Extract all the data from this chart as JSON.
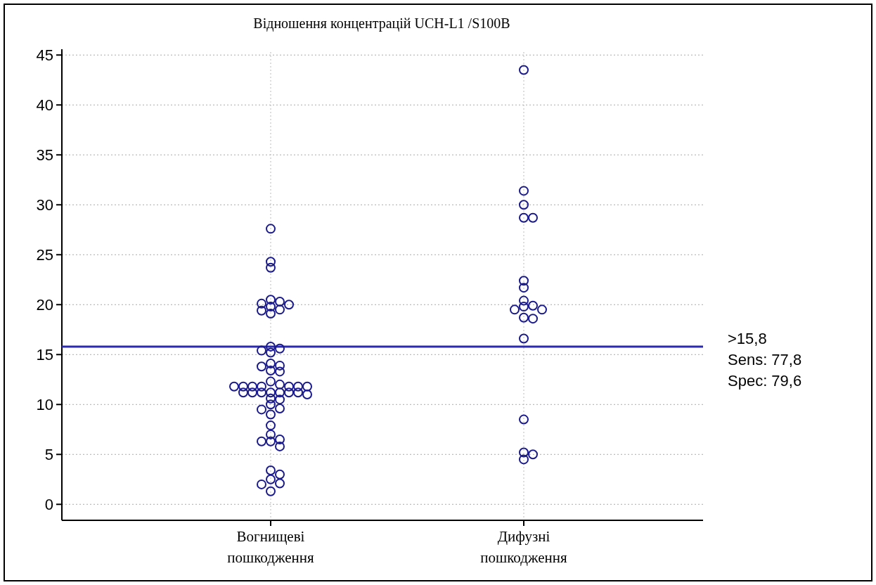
{
  "chart_data": {
    "type": "scatter",
    "title": "Відношення концентрацій UCH-L1 /S100B",
    "categories": [
      "Вогнищеві\nпошкодження",
      "Дифузні\nпошкодження"
    ],
    "series": [
      {
        "color": "#1a1a8c",
        "x": [
          "Вогнищеві\nпошкодження",
          "Вогнищеві\nпошкодження",
          "Вогнищеві\nпошкодження",
          "Вогнищеві\nпошкодження",
          "Вогнищеві\nпошкодження",
          "Вогнищеві\nпошкодження",
          "Вогнищеві\nпошкодження",
          "Вогнищеві\nпошкодження",
          "Вогнищеві\nпошкодження",
          "Вогнищеві\nпошкодження",
          "Вогнищеві\nпошкодження",
          "Вогнищеві\nпошкодження",
          "Вогнищеві\nпошкодження",
          "Вогнищеві\nпошкодження",
          "Вогнищеві\nпошкодження",
          "Вогнищеві\nпошкодження",
          "Вогнищеві\nпошкодження",
          "Вогнищеві\nпошкодження",
          "Вогнищеві\nпошкодження",
          "Вогнищеві\nпошкодження",
          "Вогнищеві\nпошкодження",
          "Вогнищеві\nпошкодження",
          "Вогнищеві\nпошкодження",
          "Вогнищеві\nпошкодження",
          "Вогнищеві\nпошкодження",
          "Вогнищеві\nпошкодження",
          "Вогнищеві\nпошкодження",
          "Вогнищеві\nпошкодження",
          "Вогнищеві\nпошкодження",
          "Вогнищеві\nпошкодження",
          "Вогнищеві\nпошкодження",
          "Вогнищеві\nпошкодження",
          "Вогнищеві\nпошкодження",
          "Вогнищеві\nпошкодження",
          "Вогнищеві\nпошкодження",
          "Вогнищеві\nпошкодження",
          "Вогнищеві\nпошкодження",
          "Вогнищеві\nпошкодження",
          "Вогнищеві\nпошкодження",
          "Вогнищеві\nпошкодження",
          "Вогнищеві\nпошкодження",
          "Вогнищеві\nпошкодження",
          "Вогнищеві\nпошкодження",
          "Вогнищеві\nпошкодження",
          "Вогнищеві\nпошкодження",
          "Вогнищеві\nпошкодження",
          "Вогнищеві\nпошкодження",
          "Вогнищеві\nпошкодження",
          "Вогнищеві\nпошкодження",
          "Вогнищеві\nпошкодження",
          "Вогнищеві\nпошкодження",
          "Вогнищеві\nпошкодження",
          "Вогнищеві\nпошкодження",
          "Вогнищеві\nпошкодження",
          "Вогнищеві\nпошкодження"
        ],
        "values": [
          27.6,
          24.3,
          23.7,
          20.5,
          20.3,
          20.1,
          20.0,
          19.8,
          19.5,
          19.4,
          19.1,
          15.8,
          15.6,
          15.4,
          15.2,
          14.1,
          13.9,
          13.8,
          13.4,
          13.3,
          12.3,
          12.0,
          11.8,
          11.8,
          11.8,
          11.8,
          11.8,
          11.8,
          11.8,
          11.2,
          11.2,
          11.2,
          11.2,
          11.2,
          11.2,
          11.2,
          11.0,
          10.6,
          10.5,
          10.0,
          9.6,
          9.5,
          9.0,
          7.9,
          7.0,
          6.5,
          6.3,
          6.3,
          5.8,
          3.4,
          3.0,
          2.5,
          2.1,
          2.0,
          1.3
        ]
      },
      {
        "color": "#1a1a8c",
        "x": [
          "Дифузні\nпошкодження",
          "Дифузні\nпошкодження",
          "Дифузні\nпошкодження",
          "Дифузні\nпошкодження",
          "Дифузні\nпошкодження",
          "Дифузні\nпошкодження",
          "Дифузні\nпошкодження",
          "Дифузні\nпошкодження",
          "Дифузні\nпошкодження",
          "Дифузні\nпошкодження",
          "Дифузні\nпошкодження",
          "Дифузні\nпошкодження",
          "Дифузні\nпошкодження",
          "Дифузні\nпошкодження",
          "Дифузні\nпошкодження",
          "Дифузні\nпошкодження",
          "Дифузні\nпошкодження",
          "Дифузні\nпошкодження",
          "Дифузні\nпошкодження"
        ],
        "values": [
          43.5,
          31.4,
          30.0,
          28.7,
          28.7,
          22.4,
          21.7,
          20.4,
          19.9,
          19.8,
          19.5,
          19.5,
          18.7,
          18.6,
          16.6,
          8.5,
          5.2,
          5.0,
          4.5
        ]
      }
    ],
    "ylim": [
      -1.6,
      45.3
    ],
    "yticks": [
      0,
      5,
      10,
      15,
      20,
      25,
      30,
      35,
      40,
      45
    ],
    "grid": true,
    "marker": "circle",
    "ref_lines": [
      {
        "axis": "y",
        "value": 15.8,
        "label": ">15,8",
        "color": "#2a2ab0"
      }
    ],
    "annotations": [
      "Sens: 77,8",
      "Spec: 79,6"
    ]
  }
}
